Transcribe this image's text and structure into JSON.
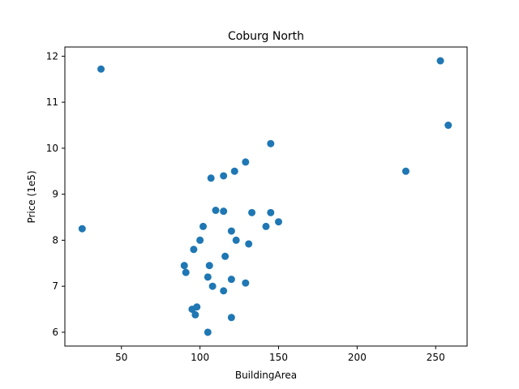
{
  "chart_data": {
    "type": "scatter",
    "title": "Coburg North",
    "xlabel": "BuildingArea",
    "ylabel": "Price (1e5)",
    "xlim": [
      14,
      270
    ],
    "ylim": [
      5.7,
      12.2
    ],
    "xticks": [
      50,
      100,
      150,
      200,
      250
    ],
    "yticks": [
      6,
      7,
      8,
      9,
      10,
      11,
      12
    ],
    "marker_color": "#1f77b4",
    "grid": false,
    "x": [
      37,
      253,
      258,
      145,
      231,
      129,
      122,
      107,
      115,
      25,
      110,
      115,
      120,
      133,
      145,
      150,
      142,
      102,
      123,
      131,
      100,
      96,
      116,
      90,
      106,
      91,
      105,
      120,
      129,
      108,
      115,
      98,
      95,
      97,
      120,
      105
    ],
    "y": [
      11.72,
      11.9,
      10.5,
      10.1,
      9.5,
      9.7,
      9.5,
      9.35,
      9.4,
      8.25,
      8.65,
      8.63,
      8.2,
      8.6,
      8.6,
      8.4,
      8.3,
      8.3,
      8.0,
      7.92,
      8.0,
      7.8,
      7.65,
      7.45,
      7.45,
      7.3,
      7.2,
      7.15,
      7.07,
      7.0,
      6.9,
      6.55,
      6.5,
      6.38,
      6.32,
      6.0
    ]
  }
}
